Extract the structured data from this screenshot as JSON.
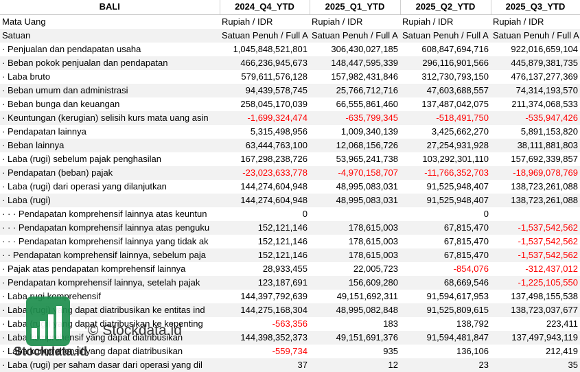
{
  "header": {
    "cells": [
      "BALI",
      "2024_Q4_YTD",
      "2025_Q1_YTD",
      "2025_Q2_YTD",
      "2025_Q3_YTD"
    ]
  },
  "rows": [
    {
      "label": "Mata Uang",
      "values": [
        "Rupiah / IDR",
        "Rupiah / IDR",
        "Rupiah / IDR",
        "Rupiah / IDR"
      ]
    },
    {
      "label": "Satuan",
      "values": [
        "Satuan Penuh / Full A",
        "Satuan Penuh / Full A",
        "Satuan Penuh / Full A",
        "Satuan Penuh / Full A"
      ]
    },
    {
      "label": "· Penjualan dan pendapatan usaha",
      "values": [
        "1,045,848,521,801",
        "306,430,027,185",
        "608,847,694,716",
        "922,016,659,104"
      ]
    },
    {
      "label": "· Beban pokok penjualan dan pendapatan",
      "values": [
        "466,236,945,673",
        "148,447,595,339",
        "296,116,901,566",
        "445,879,381,735"
      ]
    },
    {
      "label": "· Laba bruto",
      "values": [
        "579,611,576,128",
        "157,982,431,846",
        "312,730,793,150",
        "476,137,277,369"
      ]
    },
    {
      "label": "· Beban umum dan administrasi",
      "values": [
        "94,439,578,745",
        "25,766,712,716",
        "47,603,688,557",
        "74,314,193,570"
      ]
    },
    {
      "label": "· Beban bunga dan keuangan",
      "values": [
        "258,045,170,039",
        "66,555,861,460",
        "137,487,042,075",
        "211,374,068,533"
      ]
    },
    {
      "label": "· Keuntungan (kerugian) selisih kurs mata uang asin",
      "values": [
        "-1,699,324,474",
        "-635,799,345",
        "-518,491,750",
        "-535,947,426"
      ]
    },
    {
      "label": "· Pendapatan lainnya",
      "values": [
        "5,315,498,956",
        "1,009,340,139",
        "3,425,662,270",
        "5,891,153,820"
      ]
    },
    {
      "label": "· Beban lainnya",
      "values": [
        "63,444,763,100",
        "12,068,156,726",
        "27,254,931,928",
        "38,111,881,803"
      ]
    },
    {
      "label": "· Laba (rugi) sebelum pajak penghasilan",
      "values": [
        "167,298,238,726",
        "53,965,241,738",
        "103,292,301,110",
        "157,692,339,857"
      ]
    },
    {
      "label": "· Pendapatan (beban) pajak",
      "values": [
        "-23,023,633,778",
        "-4,970,158,707",
        "-11,766,352,703",
        "-18,969,078,769"
      ]
    },
    {
      "label": "· Laba (rugi) dari operasi yang dilanjutkan",
      "values": [
        "144,274,604,948",
        "48,995,083,031",
        "91,525,948,407",
        "138,723,261,088"
      ]
    },
    {
      "label": "· Laba (rugi)",
      "values": [
        "144,274,604,948",
        "48,995,083,031",
        "91,525,948,407",
        "138,723,261,088"
      ]
    },
    {
      "label": "· · · Pendapatan komprehensif lainnya atas keuntun",
      "values": [
        "0",
        null,
        "0",
        null
      ]
    },
    {
      "label": "· · · Pendapatan komprehensif lainnya atas penguku",
      "values": [
        "152,121,146",
        "178,615,003",
        "67,815,470",
        "-1,537,542,562"
      ]
    },
    {
      "label": "· · · Pendapatan komprehensif lainnya yang tidak ak",
      "values": [
        "152,121,146",
        "178,615,003",
        "67,815,470",
        "-1,537,542,562"
      ]
    },
    {
      "label": "· · Pendapatan komprehensif lainnya, sebelum paja",
      "values": [
        "152,121,146",
        "178,615,003",
        "67,815,470",
        "-1,537,542,562"
      ]
    },
    {
      "label": "· Pajak atas pendapatan komprehensif lainnya",
      "values": [
        "28,933,455",
        "22,005,723",
        "-854,076",
        "-312,437,012"
      ]
    },
    {
      "label": "· Pendapatan komprehensif lainnya, setelah pajak",
      "values": [
        "123,187,691",
        "156,609,280",
        "68,669,546",
        "-1,225,105,550"
      ]
    },
    {
      "label": "· Laba rugi komprehensif",
      "values": [
        "144,397,792,639",
        "49,151,692,311",
        "91,594,617,953",
        "137,498,155,538"
      ]
    },
    {
      "label": "· Laba (rugi) yang dapat diatribusikan ke entitas ind",
      "values": [
        "144,275,168,304",
        "48,995,082,848",
        "91,525,809,615",
        "138,723,037,677"
      ]
    },
    {
      "label": "· Laba (rugi) yang dapat diatribusikan ke kepenting",
      "values": [
        "-563,356",
        "183",
        "138,792",
        "223,411"
      ]
    },
    {
      "label": "· Laba komprehensif yang dapat diatribusikan",
      "values": [
        "144,398,352,373",
        "49,151,691,376",
        "91,594,481,847",
        "137,497,943,119"
      ]
    },
    {
      "label": "· Laba komprehensif yang dapat diatribusikan",
      "values": [
        "-559,734",
        "935",
        "136,106",
        "212,419"
      ]
    },
    {
      "label": "· Laba (rugi) per saham dasar dari operasi yang dil",
      "values": [
        "37",
        "12",
        "23",
        "35"
      ]
    }
  ],
  "watermark": {
    "copyright": "© Stockdata.id",
    "brand": "Stockdata.id"
  }
}
